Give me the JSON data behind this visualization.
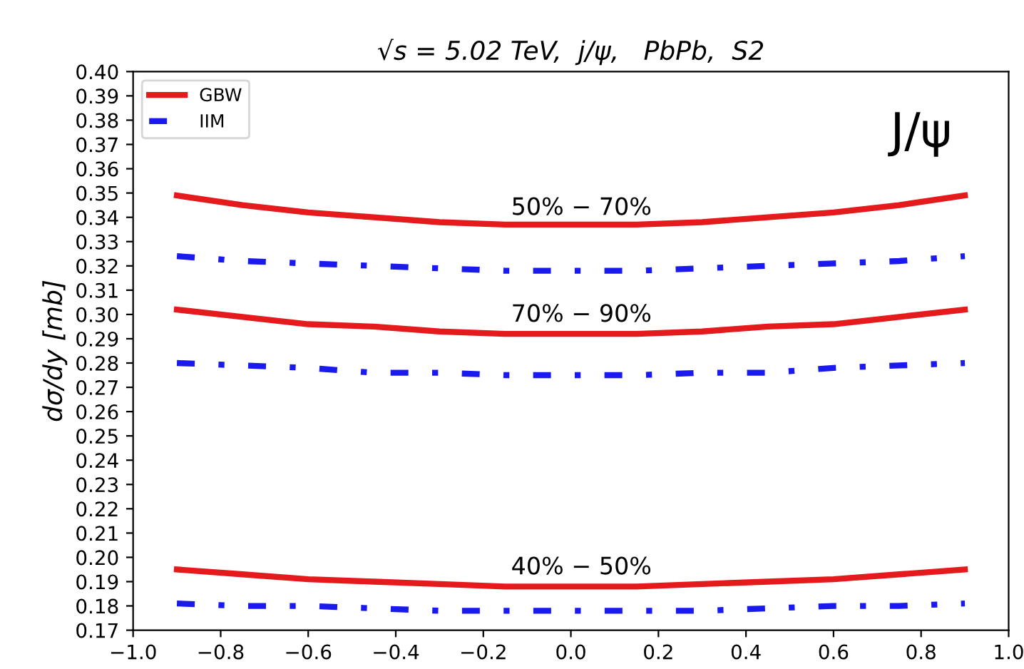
{
  "chart_data": {
    "type": "line",
    "title": "√s = 5.02 TeV,  j/ψ,   PbPb,  S2",
    "ylabel": "dσ/dy [mb]",
    "x": [
      -0.9,
      -0.75,
      -0.6,
      -0.45,
      -0.3,
      -0.15,
      0,
      0.15,
      0.3,
      0.45,
      0.6,
      0.75,
      0.9
    ],
    "series": [
      {
        "name": "GBW",
        "color": "#e41a1c",
        "line_style": "solid",
        "values": [
          0.349,
          0.345,
          0.342,
          0.34,
          0.338,
          0.337,
          0.337,
          0.337,
          0.338,
          0.34,
          0.342,
          0.345,
          0.349
        ]
      },
      {
        "name": "IIM",
        "color": "#1a1aee",
        "line_style": "dashed",
        "values": [
          0.324,
          0.322,
          0.321,
          0.32,
          0.319,
          0.318,
          0.318,
          0.318,
          0.319,
          0.32,
          0.321,
          0.322,
          0.324
        ]
      },
      {
        "color": "#e41a1c",
        "line_style": "solid",
        "values": [
          0.302,
          0.299,
          0.296,
          0.295,
          0.293,
          0.292,
          0.292,
          0.292,
          0.293,
          0.295,
          0.296,
          0.299,
          0.302
        ]
      },
      {
        "color": "#1a1aee",
        "line_style": "dashed",
        "values": [
          0.28,
          0.279,
          0.278,
          0.276,
          0.276,
          0.275,
          0.275,
          0.275,
          0.276,
          0.276,
          0.278,
          0.279,
          0.28
        ]
      },
      {
        "color": "#e41a1c",
        "line_style": "solid",
        "values": [
          0.195,
          0.193,
          0.191,
          0.19,
          0.189,
          0.188,
          0.188,
          0.188,
          0.189,
          0.19,
          0.191,
          0.193,
          0.195
        ]
      },
      {
        "color": "#1a1aee",
        "line_style": "dashed",
        "values": [
          0.181,
          0.18,
          0.18,
          0.179,
          0.178,
          0.178,
          0.178,
          0.178,
          0.178,
          0.179,
          0.18,
          0.18,
          0.181
        ]
      }
    ],
    "annotations": [
      {
        "text": "50% − 70%",
        "y": 0.339
      },
      {
        "text": "70% − 90%",
        "y": 0.295
      },
      {
        "text": "40% − 50%",
        "y": 0.191
      },
      "J/ψ"
    ],
    "xlim": [
      -1.0,
      1.0
    ],
    "xticks": [
      {
        "value": -1.0,
        "label": "−1.0"
      },
      {
        "value": -0.8,
        "label": "−0.8"
      },
      {
        "value": -0.6,
        "label": "−0.6"
      },
      {
        "value": -0.4,
        "label": "−0.4"
      },
      {
        "value": -0.2,
        "label": "−0.2"
      },
      {
        "value": 0,
        "label": "0.0"
      },
      {
        "value": 0.2,
        "label": "0.2"
      },
      {
        "value": 0.4,
        "label": "0.4"
      },
      {
        "value": 0.6,
        "label": "0.6"
      },
      {
        "value": 0.8,
        "label": "0.8"
      },
      {
        "value": 1.0,
        "label": "1.0"
      }
    ],
    "ylim": [
      0.17,
      0.4
    ],
    "yticks": [
      {
        "value": 0.17,
        "label": "0.17"
      },
      {
        "value": 0.18,
        "label": "0.18"
      },
      {
        "value": 0.19,
        "label": "0.19"
      },
      {
        "value": 0.2,
        "label": "0.20"
      },
      {
        "value": 0.21,
        "label": "0.21"
      },
      {
        "value": 0.22,
        "label": "0.22"
      },
      {
        "value": 0.23,
        "label": "0.23"
      },
      {
        "value": 0.24,
        "label": "0.24"
      },
      {
        "value": 0.25,
        "label": "0.25"
      },
      {
        "value": 0.26,
        "label": "0.26"
      },
      {
        "value": 0.27,
        "label": "0.27"
      },
      {
        "value": 0.28,
        "label": "0.28"
      },
      {
        "value": 0.29,
        "label": "0.29"
      },
      {
        "value": 0.3,
        "label": "0.30"
      },
      {
        "value": 0.31,
        "label": "0.31"
      },
      {
        "value": 0.32,
        "label": "0.32"
      },
      {
        "value": 0.33,
        "label": "0.33"
      },
      {
        "value": 0.34,
        "label": "0.34"
      },
      {
        "value": 0.35,
        "label": "0.35"
      },
      {
        "value": 0.36,
        "label": "0.36"
      },
      {
        "value": 0.37,
        "label": "0.37"
      },
      {
        "value": 0.38,
        "label": "0.38"
      },
      {
        "value": 0.39,
        "label": "0.39"
      },
      {
        "value": 0.4,
        "label": "0.40"
      }
    ],
    "grid": false,
    "legend": "top left",
    "marker": "none"
  }
}
